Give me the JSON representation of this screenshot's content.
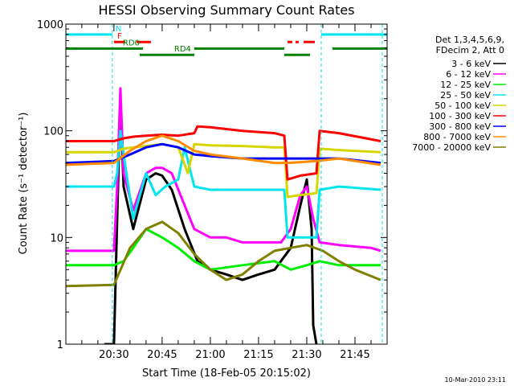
{
  "chart_data": {
    "type": "line",
    "title": "HESSI Observing Summary Count Rates",
    "xlabel": "Start Time (18-Feb-05 20:15:02)",
    "ylabel": "Count Rate (s⁻¹ detector⁻¹)",
    "yscale": "log",
    "ylim": [
      1,
      1000
    ],
    "xlim": [
      "20:15:02",
      "21:55:00"
    ],
    "x_ticks": [
      "20:30",
      "20:45",
      "21:00",
      "21:15",
      "21:30",
      "21:45"
    ],
    "y_ticks": [
      "1",
      "10",
      "100",
      "1000"
    ],
    "legend_header": [
      "Det 1,3,4,5,6,9,",
      "FDecim 2, Att 0"
    ],
    "legend_position": "right",
    "timestamp": "10-Mar-2010 23:11",
    "grid": false,
    "night_boundaries": [
      "20:29:30",
      "21:34:30",
      "21:53:30"
    ],
    "flags": [
      {
        "label": "N",
        "color": "#00e5ee",
        "y": 800,
        "segments": [
          [
            "20:15:02",
            "20:29:30"
          ],
          [
            "21:34:30",
            "21:55:00"
          ]
        ]
      },
      {
        "label": "F",
        "color": "#ff0000",
        "y": 680,
        "segments": [
          [
            "20:30:00",
            "20:33:30"
          ],
          [
            "20:37:00",
            "20:41:30"
          ],
          [
            "21:24:00",
            "21:25:30"
          ],
          [
            "21:26:30",
            "21:27:30"
          ],
          [
            "21:29:00",
            "21:32:30"
          ]
        ]
      },
      {
        "label": "RD0",
        "color": "#008000",
        "y": 590,
        "segments": [
          [
            "20:15:02",
            "20:39:00"
          ],
          [
            "20:55:00",
            "21:23:00"
          ],
          [
            "21:38:00",
            "21:55:00"
          ]
        ]
      },
      {
        "label": "RD4",
        "color": "#008000",
        "y": 515,
        "segments": [
          [
            "20:38:00",
            "20:55:00"
          ],
          [
            "21:23:00",
            "21:31:00"
          ]
        ]
      }
    ],
    "series": [
      {
        "name": "3 - 6 keV",
        "color": "#000000",
        "points": [
          [
            "20:27:00",
            0
          ],
          [
            "20:30:00",
            0
          ],
          [
            "20:31:00",
            15
          ],
          [
            "20:32:00",
            200
          ],
          [
            "20:33:00",
            30
          ],
          [
            "20:36:00",
            12
          ],
          [
            "20:40:00",
            35
          ],
          [
            "20:43:00",
            40
          ],
          [
            "20:45:00",
            38
          ],
          [
            "20:48:00",
            28
          ],
          [
            "20:52:00",
            12
          ],
          [
            "20:56:00",
            6
          ],
          [
            "21:00:00",
            5
          ],
          [
            "21:05:00",
            4.5
          ],
          [
            "21:10:00",
            4
          ],
          [
            "21:15:00",
            4.5
          ],
          [
            "21:20:00",
            5
          ],
          [
            "21:25:00",
            8
          ],
          [
            "21:28:00",
            20
          ],
          [
            "21:30:00",
            35
          ],
          [
            "21:31:30",
            12
          ],
          [
            "21:32:00",
            1.5
          ],
          [
            "21:33:00",
            1
          ]
        ]
      },
      {
        "name": "6 - 12 keV",
        "color": "#ff00ff",
        "points": [
          [
            "20:15:02",
            7.5
          ],
          [
            "20:30:00",
            7.5
          ],
          [
            "20:31:00",
            30
          ],
          [
            "20:32:00",
            250
          ],
          [
            "20:33:00",
            40
          ],
          [
            "20:36:00",
            18
          ],
          [
            "20:40:00",
            40
          ],
          [
            "20:43:00",
            45
          ],
          [
            "20:45:00",
            45
          ],
          [
            "20:48:00",
            40
          ],
          [
            "20:52:00",
            20
          ],
          [
            "20:55:00",
            12
          ],
          [
            "21:00:00",
            10
          ],
          [
            "21:05:00",
            10
          ],
          [
            "21:10:00",
            9
          ],
          [
            "21:15:00",
            9
          ],
          [
            "21:22:00",
            9
          ],
          [
            "21:25:00",
            12
          ],
          [
            "21:28:00",
            25
          ],
          [
            "21:30:00",
            30
          ],
          [
            "21:32:00",
            15
          ],
          [
            "21:34:00",
            9
          ],
          [
            "21:40:00",
            8.5
          ],
          [
            "21:50:00",
            8
          ],
          [
            "21:53:00",
            7.5
          ]
        ]
      },
      {
        "name": "12 - 25 keV",
        "color": "#00ee00",
        "points": [
          [
            "20:15:02",
            5.5
          ],
          [
            "20:30:00",
            5.5
          ],
          [
            "20:33:00",
            6
          ],
          [
            "20:36:00",
            8
          ],
          [
            "20:40:00",
            12
          ],
          [
            "20:45:00",
            10
          ],
          [
            "20:50:00",
            8
          ],
          [
            "20:55:00",
            6
          ],
          [
            "21:00:00",
            5
          ],
          [
            "21:10:00",
            5.5
          ],
          [
            "21:20:00",
            6
          ],
          [
            "21:25:00",
            5
          ],
          [
            "21:30:00",
            5.5
          ],
          [
            "21:34:00",
            6
          ],
          [
            "21:40:00",
            5.5
          ],
          [
            "21:53:00",
            5.5
          ]
        ]
      },
      {
        "name": "25 - 50 keV",
        "color": "#00e5ee",
        "points": [
          [
            "20:15:02",
            30
          ],
          [
            "20:30:00",
            30
          ],
          [
            "20:31:00",
            40
          ],
          [
            "20:32:00",
            100
          ],
          [
            "20:33:00",
            60
          ],
          [
            "20:36:00",
            15
          ],
          [
            "20:40:00",
            40
          ],
          [
            "20:43:00",
            25
          ],
          [
            "20:46:00",
            30
          ],
          [
            "20:50:00",
            35
          ],
          [
            "20:52:00",
            70
          ],
          [
            "20:55:00",
            30
          ],
          [
            "21:00:00",
            28
          ],
          [
            "21:10:00",
            28
          ],
          [
            "21:20:00",
            28
          ],
          [
            "21:23:00",
            28
          ],
          [
            "21:24:00",
            10
          ],
          [
            "21:28:00",
            10
          ],
          [
            "21:33:00",
            10
          ],
          [
            "21:34:00",
            28
          ],
          [
            "21:40:00",
            30
          ],
          [
            "21:53:00",
            28
          ]
        ]
      },
      {
        "name": "50 - 100 keV",
        "color": "#d6d600",
        "points": [
          [
            "20:15:02",
            63
          ],
          [
            "20:30:00",
            63
          ],
          [
            "20:33:00",
            68
          ],
          [
            "20:36:00",
            70
          ],
          [
            "20:40:00",
            72
          ],
          [
            "20:45:00",
            75
          ],
          [
            "20:50:00",
            70
          ],
          [
            "20:53:00",
            40
          ],
          [
            "20:55:00",
            75
          ],
          [
            "21:00:00",
            73
          ],
          [
            "21:10:00",
            72
          ],
          [
            "21:20:00",
            70
          ],
          [
            "21:23:00",
            70
          ],
          [
            "21:24:00",
            24
          ],
          [
            "21:28:00",
            25
          ],
          [
            "21:33:00",
            26
          ],
          [
            "21:34:00",
            68
          ],
          [
            "21:40:00",
            66
          ],
          [
            "21:53:00",
            63
          ]
        ]
      },
      {
        "name": "100 - 300 keV",
        "color": "#ff0000",
        "points": [
          [
            "20:15:02",
            80
          ],
          [
            "20:30:00",
            80
          ],
          [
            "20:33:00",
            85
          ],
          [
            "20:36:00",
            88
          ],
          [
            "20:40:00",
            90
          ],
          [
            "20:45:00",
            92
          ],
          [
            "20:50:00",
            90
          ],
          [
            "20:55:00",
            95
          ],
          [
            "20:56:00",
            110
          ],
          [
            "21:00:00",
            108
          ],
          [
            "21:10:00",
            100
          ],
          [
            "21:20:00",
            95
          ],
          [
            "21:23:00",
            90
          ],
          [
            "21:24:00",
            35
          ],
          [
            "21:28:00",
            38
          ],
          [
            "21:33:00",
            40
          ],
          [
            "21:34:00",
            100
          ],
          [
            "21:40:00",
            95
          ],
          [
            "21:53:00",
            80
          ]
        ]
      },
      {
        "name": "300 - 800 keV",
        "color": "#0000ff",
        "points": [
          [
            "20:15:02",
            50
          ],
          [
            "20:30:00",
            52
          ],
          [
            "20:35:00",
            60
          ],
          [
            "20:40:00",
            70
          ],
          [
            "20:45:00",
            75
          ],
          [
            "20:50:00",
            70
          ],
          [
            "20:55:00",
            60
          ],
          [
            "21:00:00",
            58
          ],
          [
            "21:10:00",
            55
          ],
          [
            "21:20:00",
            55
          ],
          [
            "21:24:00",
            55
          ],
          [
            "21:33:00",
            55
          ],
          [
            "21:40:00",
            55
          ],
          [
            "21:53:00",
            50
          ]
        ]
      },
      {
        "name": "800 - 7000 keV",
        "color": "#ff8c00",
        "points": [
          [
            "20:15:02",
            48
          ],
          [
            "20:30:00",
            50
          ],
          [
            "20:35:00",
            65
          ],
          [
            "20:40:00",
            80
          ],
          [
            "20:45:00",
            90
          ],
          [
            "20:50:00",
            80
          ],
          [
            "20:55:00",
            65
          ],
          [
            "21:00:00",
            60
          ],
          [
            "21:10:00",
            55
          ],
          [
            "21:20:00",
            50
          ],
          [
            "21:24:00",
            50
          ],
          [
            "21:33:00",
            52
          ],
          [
            "21:40:00",
            55
          ],
          [
            "21:53:00",
            48
          ]
        ]
      },
      {
        "name": "7000 - 20000 keV",
        "color": "#808000",
        "points": [
          [
            "20:15:02",
            3.5
          ],
          [
            "20:30:00",
            3.6
          ],
          [
            "20:35:00",
            8
          ],
          [
            "20:40:00",
            12
          ],
          [
            "20:45:00",
            14
          ],
          [
            "20:50:00",
            11
          ],
          [
            "20:55:00",
            7
          ],
          [
            "21:00:00",
            5
          ],
          [
            "21:05:00",
            4
          ],
          [
            "21:10:00",
            4.5
          ],
          [
            "21:15:00",
            6
          ],
          [
            "21:20:00",
            7.5
          ],
          [
            "21:25:00",
            8
          ],
          [
            "21:30:00",
            8.5
          ],
          [
            "21:35:00",
            7.5
          ],
          [
            "21:40:00",
            6
          ],
          [
            "21:45:00",
            5
          ],
          [
            "21:53:00",
            4
          ]
        ]
      }
    ]
  }
}
